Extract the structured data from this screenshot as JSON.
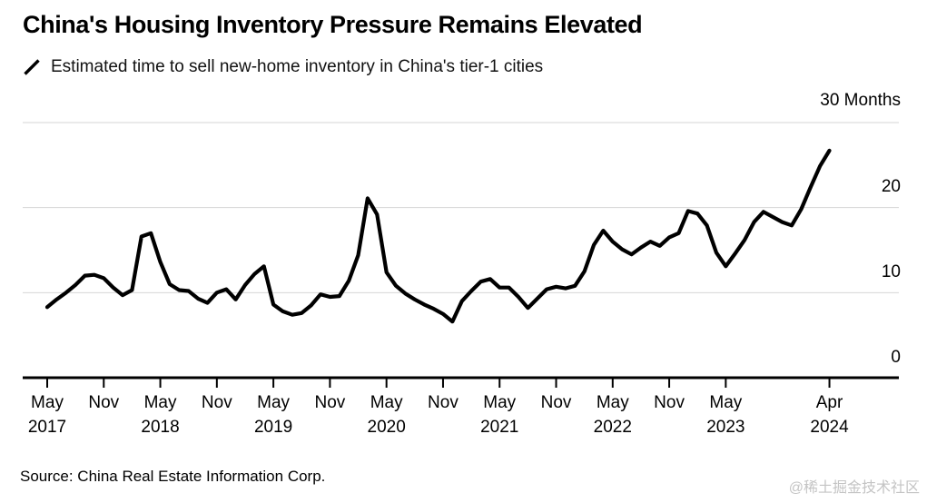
{
  "header": {
    "title": "China's Housing Inventory Pressure Remains Elevated",
    "subtitle": "Estimated time to sell new-home inventory in China's tier-1 cities"
  },
  "y_axis": {
    "top_label": "30 Months",
    "tick_labels": {
      "t20": "20",
      "t10": "10",
      "t0": "0"
    }
  },
  "x_axis": {
    "ticks": [
      {
        "month_index": 0,
        "line1": "May",
        "line2": "2017"
      },
      {
        "month_index": 6,
        "line1": "Nov",
        "line2": ""
      },
      {
        "month_index": 12,
        "line1": "May",
        "line2": "2018"
      },
      {
        "month_index": 18,
        "line1": "Nov",
        "line2": ""
      },
      {
        "month_index": 24,
        "line1": "May",
        "line2": "2019"
      },
      {
        "month_index": 30,
        "line1": "Nov",
        "line2": ""
      },
      {
        "month_index": 36,
        "line1": "May",
        "line2": "2020"
      },
      {
        "month_index": 42,
        "line1": "Nov",
        "line2": ""
      },
      {
        "month_index": 48,
        "line1": "May",
        "line2": "2021"
      },
      {
        "month_index": 54,
        "line1": "Nov",
        "line2": ""
      },
      {
        "month_index": 60,
        "line1": "May",
        "line2": "2022"
      },
      {
        "month_index": 66,
        "line1": "Nov",
        "line2": ""
      },
      {
        "month_index": 72,
        "line1": "May",
        "line2": "2023"
      },
      {
        "month_index": 83,
        "line1": "Apr",
        "line2": "2024"
      }
    ]
  },
  "footer": {
    "source": "Source: China Real Estate Information Corp.",
    "watermark": "@稀土掘金技术社区"
  },
  "colors": {
    "line": "#000000",
    "grid": "#d6d6d6",
    "axis": "#000000",
    "tick": "#000000",
    "watermark": "#c4c4c4"
  },
  "chart_data": {
    "type": "line",
    "title": "China's Housing Inventory Pressure Remains Elevated",
    "subtitle": "Estimated time to sell new-home inventory in China's tier-1 cities",
    "unit": "Months",
    "frequency": "monthly",
    "x_start": "2017-05",
    "x_end": "2024-04",
    "ylim": [
      0,
      30
    ],
    "yticks": [
      0,
      10,
      20,
      30
    ],
    "grid": "horizontal",
    "legend_position": "none",
    "series": [
      {
        "name": "Estimated time to sell new-home inventory in China's tier-1 cities",
        "values": [
          8.3,
          9.2,
          10.0,
          10.9,
          12.0,
          12.1,
          11.7,
          10.6,
          9.7,
          10.3,
          16.6,
          17.0,
          13.6,
          11.0,
          10.3,
          10.2,
          9.3,
          8.8,
          10.0,
          10.4,
          9.2,
          10.9,
          12.2,
          13.1,
          8.6,
          7.8,
          7.4,
          7.6,
          8.5,
          9.8,
          9.5,
          9.6,
          11.4,
          14.4,
          21.1,
          19.2,
          12.4,
          10.8,
          9.9,
          9.2,
          8.6,
          8.1,
          7.5,
          6.6,
          9.0,
          10.2,
          11.3,
          11.6,
          10.6,
          10.6,
          9.5,
          8.2,
          9.3,
          10.4,
          10.7,
          10.5,
          10.8,
          12.5,
          15.6,
          17.3,
          16.0,
          15.1,
          14.5,
          15.3,
          16.0,
          15.5,
          16.5,
          17.0,
          19.6,
          19.3,
          17.9,
          14.7,
          13.1,
          14.6,
          16.2,
          18.3,
          19.5,
          18.9,
          18.3,
          17.9,
          19.8,
          22.4,
          24.9,
          26.7
        ]
      }
    ]
  }
}
